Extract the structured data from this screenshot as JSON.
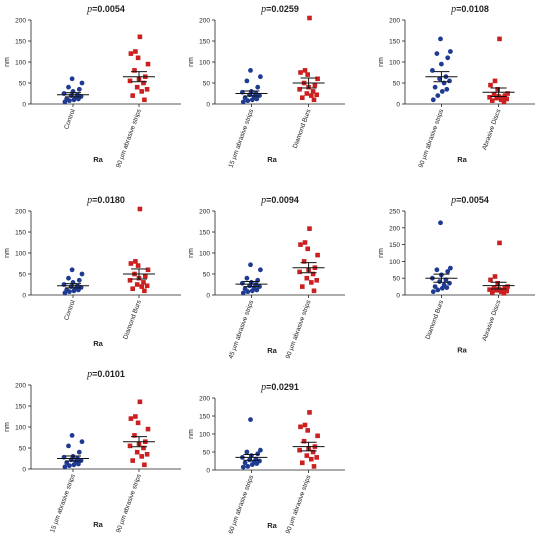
{
  "chart_data": [
    {
      "type": "scatter",
      "title_prefix": "p",
      "title_value": "=0.0054",
      "ylabel": "nm",
      "xlabel": "Ra",
      "ylim": [
        0,
        200
      ],
      "yticks": [
        0,
        50,
        100,
        150,
        200
      ],
      "categories": [
        "Control",
        "90 μm abrasive strips"
      ],
      "series": [
        {
          "color": "#1f3a93",
          "marker": "circle",
          "values": [
            5,
            8,
            10,
            12,
            12,
            15,
            18,
            20,
            22,
            25,
            30,
            35,
            40,
            50,
            60
          ],
          "mean": 22,
          "sem": 5
        },
        {
          "color": "#cc1f1f",
          "marker": "square",
          "values": [
            10,
            20,
            30,
            35,
            40,
            50,
            55,
            60,
            65,
            80,
            95,
            110,
            120,
            125,
            160
          ],
          "mean": 65,
          "sem": 12
        }
      ]
    },
    {
      "type": "scatter",
      "title_prefix": "p",
      "title_value": "=0.0259",
      "ylabel": "nm",
      "xlabel": "Ra",
      "ylim": [
        0,
        200
      ],
      "yticks": [
        0,
        50,
        100,
        150,
        200
      ],
      "categories": [
        "15 μm abrasive strips",
        "Diamond Burs"
      ],
      "series": [
        {
          "color": "#1f3a93",
          "marker": "circle",
          "values": [
            5,
            8,
            10,
            12,
            15,
            18,
            20,
            22,
            25,
            28,
            30,
            40,
            55,
            65,
            80
          ],
          "mean": 25,
          "sem": 6
        },
        {
          "color": "#cc1f1f",
          "marker": "square",
          "values": [
            10,
            15,
            20,
            22,
            25,
            30,
            35,
            40,
            45,
            50,
            60,
            70,
            75,
            80,
            215
          ],
          "mean": 50,
          "sem": 12
        }
      ]
    },
    {
      "type": "scatter",
      "title_prefix": "p",
      "title_value": "=0.0108",
      "ylabel": "nm",
      "xlabel": "Ra",
      "ylim": [
        0,
        200
      ],
      "yticks": [
        0,
        50,
        100,
        150,
        200
      ],
      "categories": [
        "90 μm abrasive strips",
        "Abrasive Discs"
      ],
      "series": [
        {
          "color": "#1f3a93",
          "marker": "circle",
          "values": [
            10,
            20,
            30,
            35,
            40,
            50,
            55,
            60,
            65,
            80,
            95,
            110,
            120,
            125,
            155
          ],
          "mean": 65,
          "sem": 12
        },
        {
          "color": "#cc1f1f",
          "marker": "square",
          "values": [
            5,
            8,
            10,
            12,
            14,
            15,
            16,
            18,
            20,
            22,
            25,
            35,
            45,
            55,
            155
          ],
          "mean": 28,
          "sem": 10
        }
      ]
    },
    {
      "type": "scatter",
      "title_prefix": "p",
      "title_value": "=0.0180",
      "ylabel": "nm",
      "xlabel": "Ra",
      "ylim": [
        0,
        200
      ],
      "yticks": [
        0,
        50,
        100,
        150,
        200
      ],
      "categories": [
        "Control",
        "Diamond Burs"
      ],
      "series": [
        {
          "color": "#1f3a93",
          "marker": "circle",
          "values": [
            5,
            8,
            10,
            12,
            12,
            15,
            18,
            20,
            22,
            25,
            30,
            35,
            40,
            50,
            60
          ],
          "mean": 22,
          "sem": 5
        },
        {
          "color": "#cc1f1f",
          "marker": "square",
          "values": [
            10,
            15,
            20,
            22,
            25,
            30,
            35,
            40,
            45,
            50,
            60,
            70,
            75,
            80,
            215
          ],
          "mean": 50,
          "sem": 12
        }
      ]
    },
    {
      "type": "scatter",
      "title_prefix": "p",
      "title_value": "=0.0094",
      "ylabel": "nm",
      "xlabel": "Ra",
      "ylim": [
        0,
        200
      ],
      "yticks": [
        0,
        50,
        100,
        150,
        200
      ],
      "categories": [
        "45 μm abrasive strips",
        "90 μm abrasive strips"
      ],
      "series": [
        {
          "color": "#1f3a93",
          "marker": "circle",
          "values": [
            5,
            8,
            10,
            12,
            15,
            18,
            20,
            22,
            25,
            28,
            30,
            35,
            40,
            60,
            72
          ],
          "mean": 26,
          "sem": 6
        },
        {
          "color": "#cc1f1f",
          "marker": "square",
          "values": [
            10,
            20,
            30,
            35,
            40,
            50,
            55,
            60,
            65,
            80,
            95,
            110,
            120,
            125,
            158
          ],
          "mean": 65,
          "sem": 12
        }
      ]
    },
    {
      "type": "scatter",
      "title_prefix": "p",
      "title_value": "=0.0054",
      "ylabel": "nm",
      "xlabel": "Ra",
      "ylim": [
        0,
        250
      ],
      "yticks": [
        0,
        50,
        100,
        150,
        200,
        250
      ],
      "categories": [
        "Diamond Burs",
        "Abrasive Discs"
      ],
      "series": [
        {
          "color": "#1f3a93",
          "marker": "circle",
          "values": [
            10,
            15,
            20,
            22,
            25,
            30,
            35,
            40,
            45,
            50,
            60,
            70,
            75,
            80,
            215
          ],
          "mean": 50,
          "sem": 12
        },
        {
          "color": "#cc1f1f",
          "marker": "square",
          "values": [
            5,
            8,
            10,
            12,
            14,
            15,
            16,
            18,
            20,
            22,
            25,
            35,
            45,
            55,
            155
          ],
          "mean": 28,
          "sem": 10
        }
      ]
    },
    {
      "type": "scatter",
      "title_prefix": "p",
      "title_value": "=0.0101",
      "ylabel": "nm",
      "xlabel": "Ra",
      "ylim": [
        0,
        200
      ],
      "yticks": [
        0,
        50,
        100,
        150,
        200
      ],
      "categories": [
        "15 μm abrasive strips",
        "90 μm abrasive strips"
      ],
      "series": [
        {
          "color": "#1f3a93",
          "marker": "circle",
          "values": [
            5,
            8,
            10,
            12,
            15,
            18,
            20,
            22,
            25,
            28,
            30,
            40,
            55,
            65,
            80
          ],
          "mean": 25,
          "sem": 6
        },
        {
          "color": "#cc1f1f",
          "marker": "square",
          "values": [
            10,
            20,
            30,
            35,
            40,
            50,
            55,
            60,
            65,
            80,
            95,
            110,
            120,
            125,
            160
          ],
          "mean": 65,
          "sem": 12
        }
      ]
    },
    {
      "type": "scatter",
      "title_prefix": "p",
      "title_value": "=0.0291",
      "ylabel": "nm",
      "xlabel": "Ra",
      "ylim": [
        0,
        200
      ],
      "yticks": [
        0,
        50,
        100,
        150,
        200
      ],
      "categories": [
        "60 μm abrasive strips",
        "90 μm abrasive strips"
      ],
      "series": [
        {
          "color": "#1f3a93",
          "marker": "circle",
          "values": [
            8,
            10,
            15,
            18,
            20,
            22,
            25,
            28,
            30,
            35,
            40,
            45,
            50,
            55,
            140
          ],
          "mean": 35,
          "sem": 8
        },
        {
          "color": "#cc1f1f",
          "marker": "square",
          "values": [
            10,
            20,
            30,
            35,
            40,
            50,
            55,
            60,
            65,
            80,
            95,
            110,
            120,
            125,
            160
          ],
          "mean": 65,
          "sem": 12
        }
      ]
    }
  ]
}
